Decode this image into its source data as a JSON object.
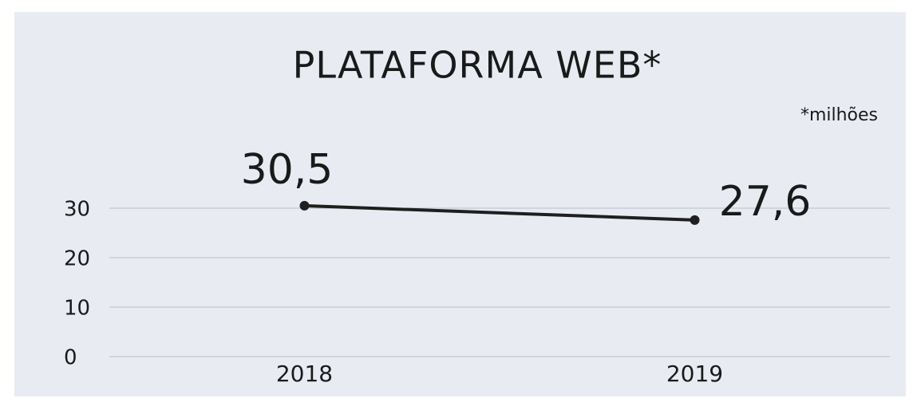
{
  "chart_data": {
    "type": "line",
    "title": "PLATAFORMA WEB*",
    "subtitle": "*milhões",
    "categories": [
      "2018",
      "2019"
    ],
    "series": [
      {
        "name": "Plataforma Web",
        "color": "#1f1f1f",
        "values": [
          30.5,
          27.6
        ],
        "value_labels": [
          "30,5",
          "27,6"
        ]
      }
    ],
    "ylim": [
      0,
      35
    ],
    "yticks": [
      0,
      10,
      20,
      30
    ],
    "grid": true
  }
}
